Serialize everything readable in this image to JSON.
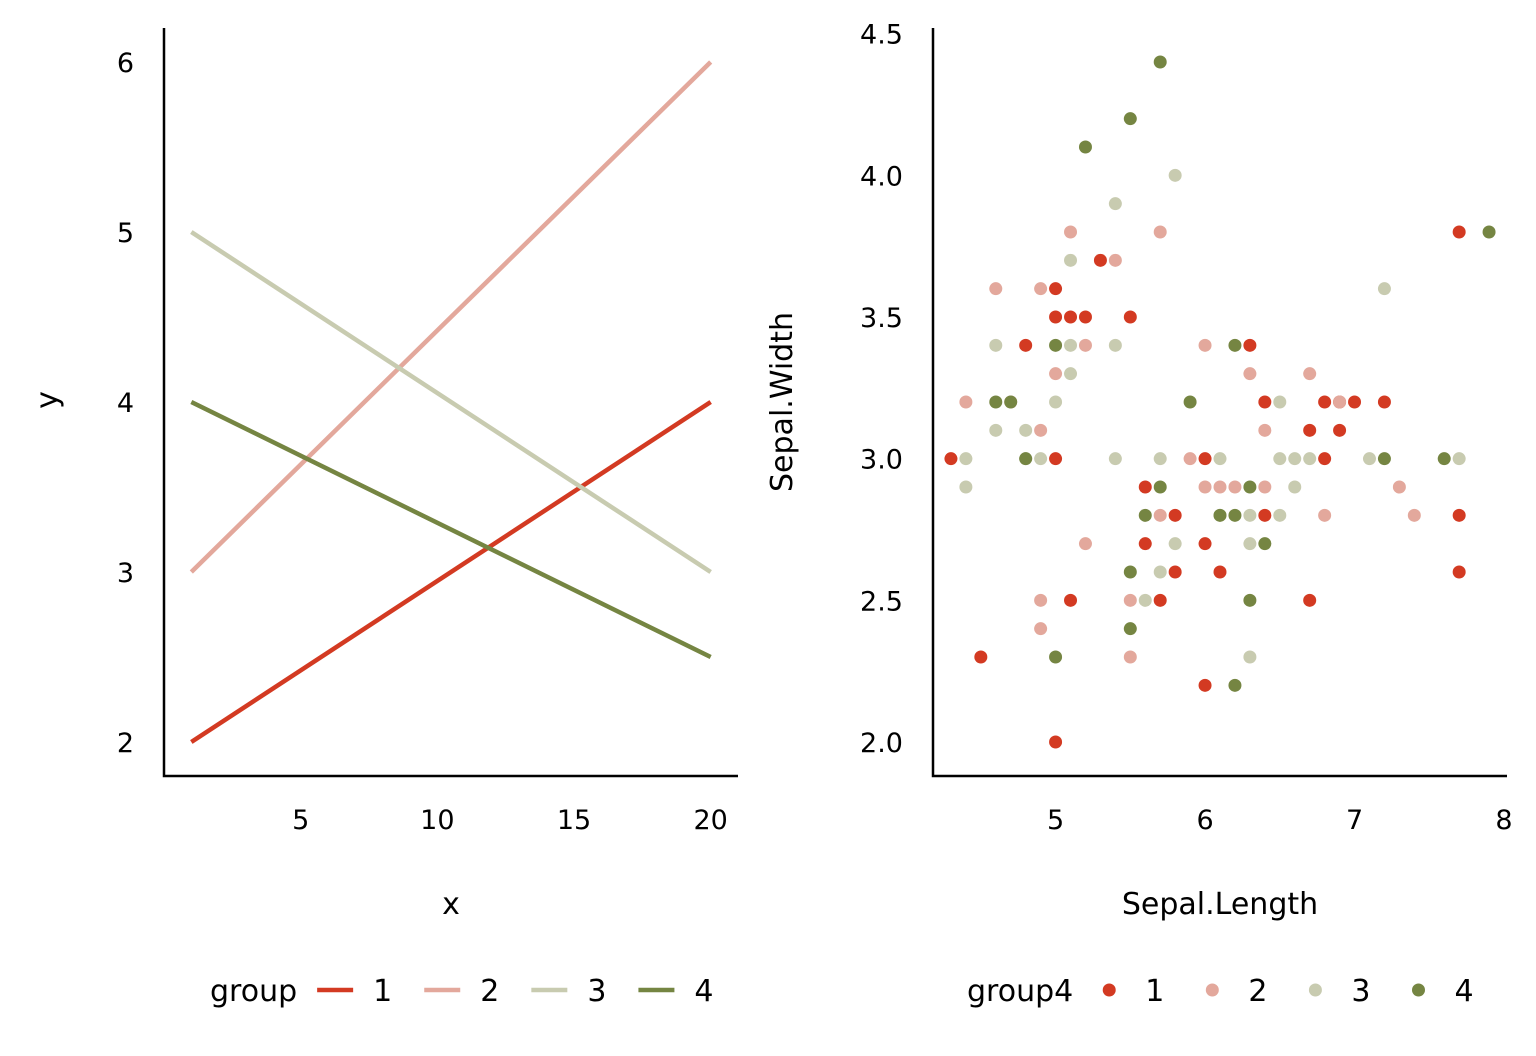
{
  "colors": {
    "1": "#D33A22",
    "2": "#E3A89C",
    "3": "#C8CBB0",
    "4": "#758542"
  },
  "chart_data": [
    {
      "type": "line",
      "xlabel": "x",
      "ylabel": "y",
      "xlim": [
        0,
        21
      ],
      "ylim": [
        1.8,
        6.2
      ],
      "xticks": [
        "5",
        "10",
        "15",
        "20"
      ],
      "yticks": [
        "2",
        "3",
        "4",
        "5",
        "6"
      ],
      "grid": false,
      "legend": {
        "title": "group",
        "position": "bottom",
        "entries": [
          "1",
          "2",
          "3",
          "4"
        ]
      },
      "series": [
        {
          "name": "1",
          "x": [
            1,
            20
          ],
          "y": [
            2,
            4
          ]
        },
        {
          "name": "2",
          "x": [
            1,
            20
          ],
          "y": [
            3,
            6
          ]
        },
        {
          "name": "3",
          "x": [
            1,
            20
          ],
          "y": [
            5,
            3
          ]
        },
        {
          "name": "4",
          "x": [
            1,
            20
          ],
          "y": [
            4,
            2.5
          ]
        }
      ]
    },
    {
      "type": "scatter",
      "xlabel": "Sepal.Length",
      "ylabel": "Sepal.Width",
      "xlim": [
        4.18,
        8.02
      ],
      "ylim": [
        1.88,
        4.52
      ],
      "xticks": [
        "5",
        "6",
        "7",
        "8"
      ],
      "yticks": [
        "2.0",
        "2.5",
        "3.0",
        "3.5",
        "4.0",
        "4.5"
      ],
      "grid": false,
      "legend": {
        "title": "group4",
        "position": "bottom",
        "entries": [
          "1",
          "2",
          "3",
          "4"
        ]
      },
      "series": [
        {
          "name": "1",
          "points": [
            [
              4.3,
              3.0
            ],
            [
              4.5,
              2.3
            ],
            [
              4.8,
              3.4
            ],
            [
              5.0,
              3.6
            ],
            [
              5.0,
              3.5
            ],
            [
              5.0,
              3.0
            ],
            [
              5.0,
              2.0
            ],
            [
              5.1,
              3.5
            ],
            [
              5.1,
              2.5
            ],
            [
              5.2,
              3.5
            ],
            [
              5.3,
              3.7
            ],
            [
              5.5,
              3.5
            ],
            [
              5.6,
              2.9
            ],
            [
              5.6,
              2.7
            ],
            [
              5.7,
              2.5
            ],
            [
              5.8,
              2.8
            ],
            [
              5.8,
              2.6
            ],
            [
              6.0,
              3.0
            ],
            [
              6.0,
              2.7
            ],
            [
              6.0,
              2.2
            ],
            [
              6.1,
              2.6
            ],
            [
              6.3,
              3.4
            ],
            [
              6.4,
              3.2
            ],
            [
              6.4,
              2.8
            ],
            [
              6.7,
              3.1
            ],
            [
              6.7,
              2.5
            ],
            [
              6.8,
              3.2
            ],
            [
              6.8,
              3.0
            ],
            [
              6.9,
              3.2
            ],
            [
              6.9,
              3.1
            ],
            [
              7.0,
              3.2
            ],
            [
              7.2,
              3.2
            ],
            [
              7.7,
              3.8
            ],
            [
              7.7,
              2.8
            ],
            [
              7.7,
              2.6
            ]
          ]
        },
        {
          "name": "2",
          "points": [
            [
              4.4,
              3.2
            ],
            [
              4.6,
              3.6
            ],
            [
              4.7,
              3.2
            ],
            [
              4.9,
              3.6
            ],
            [
              4.9,
              3.1
            ],
            [
              4.9,
              2.5
            ],
            [
              4.9,
              2.4
            ],
            [
              5.0,
              3.3
            ],
            [
              5.1,
              3.8
            ],
            [
              5.2,
              3.4
            ],
            [
              5.2,
              2.7
            ],
            [
              5.4,
              3.7
            ],
            [
              5.5,
              2.5
            ],
            [
              5.5,
              2.3
            ],
            [
              5.7,
              3.8
            ],
            [
              5.7,
              2.8
            ],
            [
              5.9,
              3.0
            ],
            [
              6.0,
              3.4
            ],
            [
              6.0,
              2.9
            ],
            [
              6.1,
              2.9
            ],
            [
              6.2,
              2.9
            ],
            [
              6.3,
              3.3
            ],
            [
              6.4,
              3.1
            ],
            [
              6.4,
              2.9
            ],
            [
              6.7,
              3.3
            ],
            [
              6.8,
              2.8
            ],
            [
              6.9,
              3.2
            ],
            [
              7.3,
              2.9
            ],
            [
              7.4,
              2.8
            ]
          ]
        },
        {
          "name": "3",
          "points": [
            [
              4.4,
              3.0
            ],
            [
              4.4,
              2.9
            ],
            [
              4.6,
              3.4
            ],
            [
              4.6,
              3.1
            ],
            [
              4.8,
              3.1
            ],
            [
              4.8,
              3.0
            ],
            [
              4.9,
              3.0
            ],
            [
              5.0,
              3.2
            ],
            [
              5.1,
              3.7
            ],
            [
              5.1,
              3.4
            ],
            [
              5.1,
              3.3
            ],
            [
              5.4,
              3.9
            ],
            [
              5.4,
              3.4
            ],
            [
              5.4,
              3.0
            ],
            [
              5.6,
              2.5
            ],
            [
              5.7,
              3.0
            ],
            [
              5.7,
              2.6
            ],
            [
              5.8,
              4.0
            ],
            [
              5.8,
              2.7
            ],
            [
              6.1,
              3.0
            ],
            [
              6.1,
              2.8
            ],
            [
              6.3,
              2.8
            ],
            [
              6.3,
              2.7
            ],
            [
              6.3,
              2.3
            ],
            [
              6.5,
              3.2
            ],
            [
              6.5,
              3.0
            ],
            [
              6.5,
              2.8
            ],
            [
              6.6,
              3.0
            ],
            [
              6.6,
              2.9
            ],
            [
              6.7,
              3.0
            ],
            [
              7.1,
              3.0
            ],
            [
              7.2,
              3.6
            ],
            [
              7.7,
              3.0
            ]
          ]
        },
        {
          "name": "4",
          "points": [
            [
              4.6,
              3.2
            ],
            [
              4.7,
              3.2
            ],
            [
              4.8,
              3.0
            ],
            [
              5.0,
              3.4
            ],
            [
              5.0,
              2.3
            ],
            [
              5.2,
              4.1
            ],
            [
              5.5,
              4.2
            ],
            [
              5.5,
              2.6
            ],
            [
              5.5,
              2.4
            ],
            [
              5.6,
              2.8
            ],
            [
              5.7,
              4.4
            ],
            [
              5.7,
              2.9
            ],
            [
              5.9,
              3.2
            ],
            [
              6.1,
              2.8
            ],
            [
              6.2,
              3.4
            ],
            [
              6.2,
              2.8
            ],
            [
              6.2,
              2.2
            ],
            [
              6.3,
              2.9
            ],
            [
              6.3,
              2.5
            ],
            [
              6.4,
              2.7
            ],
            [
              7.2,
              3.0
            ],
            [
              7.6,
              3.0
            ],
            [
              7.9,
              3.8
            ]
          ]
        }
      ]
    }
  ]
}
